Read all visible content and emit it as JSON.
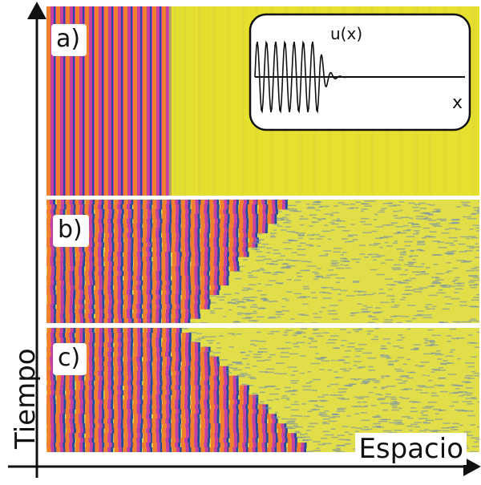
{
  "axes": {
    "y_label": "Tiempo",
    "x_label": "Espacio"
  },
  "panels": [
    {
      "label": "a)",
      "front_fraction": 0.283,
      "front_shape": "stationary"
    },
    {
      "label": "b)",
      "front_fraction_top": 0.55,
      "front_fraction_bottom": 0.33,
      "front_shape": "advancing"
    },
    {
      "label": "c)",
      "front_fraction_top": 0.31,
      "front_fraction_bottom": 0.6,
      "front_shape": "receding"
    }
  ],
  "inset": {
    "y_label": "u(x)",
    "x_label": "x"
  },
  "colors": {
    "background_state": "#e6e02e",
    "stripe_magenta": "#c640a4",
    "stripe_orange": "#f27f2e",
    "stripe_blue": "#2a4aa0",
    "axis": "#111111"
  }
}
